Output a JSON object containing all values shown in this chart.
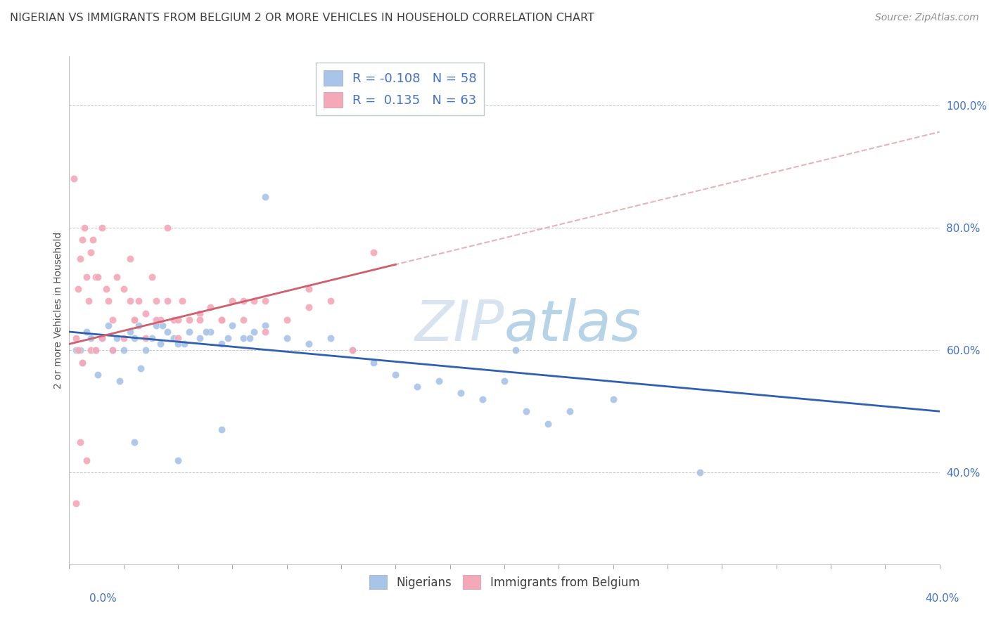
{
  "title": "NIGERIAN VS IMMIGRANTS FROM BELGIUM 2 OR MORE VEHICLES IN HOUSEHOLD CORRELATION CHART",
  "source": "Source: ZipAtlas.com",
  "ylabel_label": "2 or more Vehicles in Household",
  "legend_label1": "Nigerians",
  "legend_label2": "Immigrants from Belgium",
  "R1": -0.108,
  "N1": 58,
  "R2": 0.135,
  "N2": 63,
  "blue_color": "#a8c4e8",
  "pink_color": "#f4a8b8",
  "blue_line_color": "#3060b0",
  "pink_line_color": "#d06070",
  "pink_dash_color": "#e0a0a8",
  "title_color": "#404040",
  "source_color": "#909090",
  "axis_tick_color": "#4472c4",
  "ylabel_color": "#505050",
  "legend_text_color": "#4472c4",
  "watermark_color": "#d0dff0",
  "xlim": [
    0.0,
    40.0
  ],
  "ylim": [
    25.0,
    108.0
  ],
  "yticks": [
    40,
    60,
    80,
    100
  ],
  "blue_x": [
    0.3,
    0.5,
    0.8,
    1.0,
    1.2,
    1.5,
    1.8,
    2.0,
    2.2,
    2.5,
    2.8,
    3.0,
    3.2,
    3.5,
    3.8,
    4.0,
    4.2,
    4.5,
    4.8,
    5.0,
    5.5,
    6.0,
    6.5,
    7.0,
    7.5,
    8.0,
    8.5,
    9.0,
    10.0,
    11.0,
    12.0,
    13.0,
    14.0,
    15.0,
    16.0,
    17.0,
    18.0,
    19.0,
    20.0,
    21.0,
    22.0,
    23.0,
    25.0,
    0.6,
    1.3,
    2.3,
    3.3,
    4.3,
    5.3,
    6.3,
    7.3,
    8.3,
    3.0,
    5.0,
    7.0,
    9.0,
    29.0,
    20.5
  ],
  "blue_y": [
    60.0,
    60.0,
    63.0,
    62.0,
    60.0,
    62.0,
    64.0,
    60.0,
    62.0,
    60.0,
    63.0,
    62.0,
    64.0,
    60.0,
    62.0,
    64.0,
    61.0,
    63.0,
    62.0,
    61.0,
    63.0,
    62.0,
    63.0,
    61.0,
    64.0,
    62.0,
    63.0,
    64.0,
    62.0,
    61.0,
    62.0,
    60.0,
    58.0,
    56.0,
    54.0,
    55.0,
    53.0,
    52.0,
    55.0,
    50.0,
    48.0,
    50.0,
    52.0,
    58.0,
    56.0,
    55.0,
    57.0,
    64.0,
    61.0,
    63.0,
    62.0,
    62.0,
    45.0,
    42.0,
    47.0,
    85.0,
    40.0,
    60.0
  ],
  "pink_x": [
    0.2,
    0.3,
    0.4,
    0.5,
    0.6,
    0.7,
    0.8,
    0.9,
    1.0,
    1.1,
    1.2,
    1.3,
    1.5,
    1.7,
    1.8,
    2.0,
    2.2,
    2.5,
    2.8,
    3.0,
    3.2,
    3.5,
    3.8,
    4.0,
    4.2,
    4.5,
    4.8,
    5.0,
    5.2,
    5.5,
    6.0,
    6.5,
    7.0,
    7.5,
    8.0,
    8.5,
    9.0,
    10.0,
    11.0,
    12.0,
    13.0,
    14.0,
    0.4,
    0.6,
    1.0,
    1.5,
    2.0,
    2.5,
    3.0,
    3.5,
    4.0,
    5.0,
    6.0,
    7.0,
    8.0,
    9.0,
    11.0,
    0.3,
    0.5,
    0.8,
    1.2,
    2.8,
    4.5
  ],
  "pink_y": [
    88.0,
    62.0,
    70.0,
    75.0,
    78.0,
    80.0,
    72.0,
    68.0,
    76.0,
    78.0,
    72.0,
    72.0,
    80.0,
    70.0,
    68.0,
    65.0,
    72.0,
    70.0,
    68.0,
    65.0,
    68.0,
    66.0,
    72.0,
    68.0,
    65.0,
    68.0,
    65.0,
    65.0,
    68.0,
    65.0,
    66.0,
    67.0,
    65.0,
    68.0,
    68.0,
    68.0,
    68.0,
    65.0,
    70.0,
    68.0,
    60.0,
    76.0,
    60.0,
    58.0,
    60.0,
    62.0,
    60.0,
    62.0,
    65.0,
    62.0,
    65.0,
    62.0,
    65.0,
    65.0,
    65.0,
    63.0,
    67.0,
    35.0,
    45.0,
    42.0,
    60.0,
    75.0,
    80.0
  ]
}
